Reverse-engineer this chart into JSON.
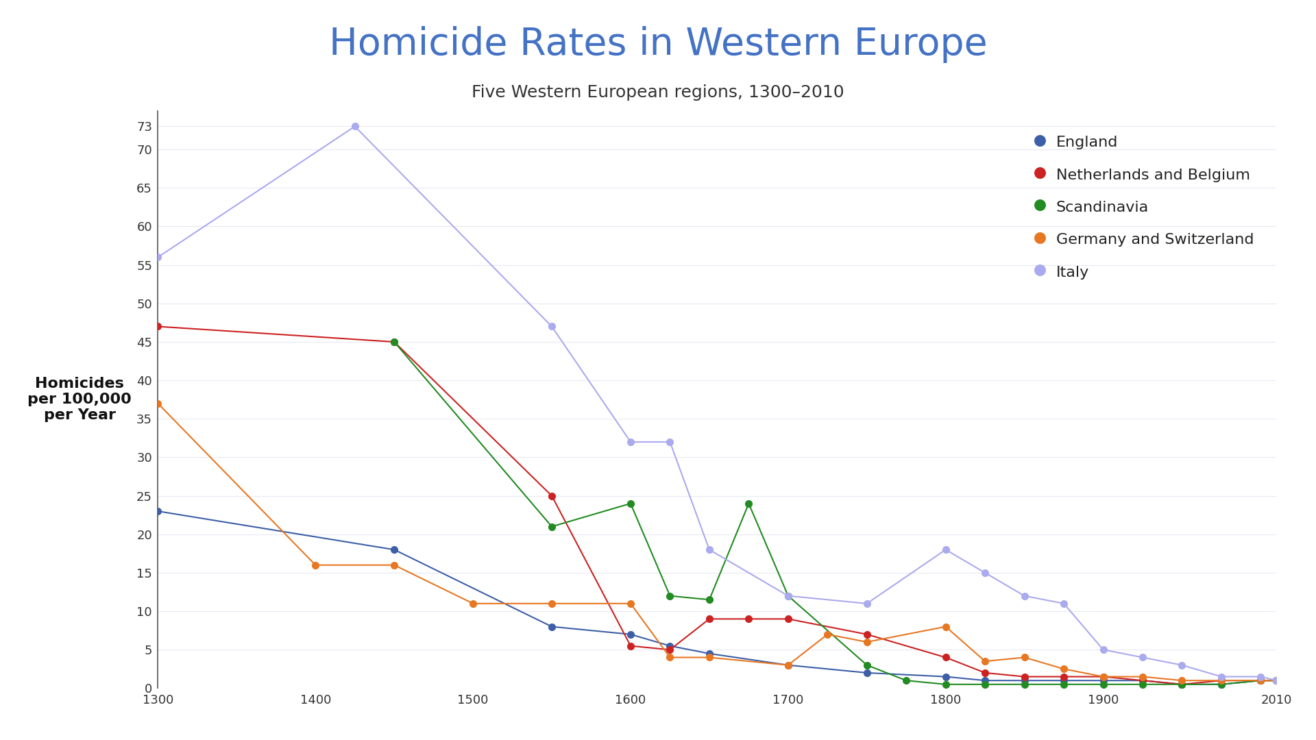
{
  "title": "Homicide Rates in Western Europe",
  "subtitle": "Five Western European regions, 1300–2010",
  "ylabel": "Homicides\nper 100,000\nper Year",
  "series": [
    {
      "label": "England",
      "color": "#3D5FA8",
      "x": [
        1300,
        1450,
        1550,
        1600,
        1625,
        1650,
        1700,
        1750,
        1800,
        1825,
        1850,
        1875,
        1900,
        1925,
        1950,
        1975,
        2000,
        2010
      ],
      "y": [
        23,
        18,
        8,
        7,
        5.5,
        4.5,
        3,
        2,
        1.5,
        1,
        1,
        1,
        1,
        1,
        0.5,
        0.5,
        1,
        1
      ]
    },
    {
      "label": "Netherlands and Belgium",
      "color": "#CC2222",
      "x": [
        1300,
        1450,
        1550,
        1600,
        1625,
        1650,
        1675,
        1700,
        1750,
        1800,
        1825,
        1850,
        1875,
        1900,
        1925,
        1950,
        1975,
        2000,
        2010
      ],
      "y": [
        47,
        45,
        25,
        5.5,
        5,
        9,
        9,
        9,
        7,
        4,
        2,
        1.5,
        1.5,
        1.5,
        1,
        0.5,
        1,
        1,
        1
      ]
    },
    {
      "label": "Scandinavia",
      "color": "#228B22",
      "x": [
        1450,
        1550,
        1600,
        1625,
        1650,
        1675,
        1700,
        1750,
        1775,
        1800,
        1825,
        1850,
        1875,
        1900,
        1925,
        1950,
        1975,
        2000,
        2010
      ],
      "y": [
        45,
        21,
        24,
        12,
        11.5,
        24,
        12,
        3,
        1,
        0.5,
        0.5,
        0.5,
        0.5,
        0.5,
        0.5,
        0.5,
        0.5,
        1,
        1
      ]
    },
    {
      "label": "Germany and Switzerland",
      "color": "#E87722",
      "x": [
        1300,
        1400,
        1450,
        1500,
        1550,
        1600,
        1625,
        1650,
        1700,
        1725,
        1750,
        1800,
        1825,
        1850,
        1875,
        1900,
        1925,
        1950,
        1975,
        2000,
        2010
      ],
      "y": [
        37,
        16,
        16,
        11,
        11,
        11,
        4,
        4,
        3,
        7,
        6,
        8,
        3.5,
        4,
        2.5,
        1.5,
        1.5,
        1,
        1,
        1,
        1
      ]
    },
    {
      "label": "Italy",
      "color": "#AAAAEE",
      "x": [
        1300,
        1425,
        1550,
        1600,
        1625,
        1650,
        1700,
        1750,
        1800,
        1825,
        1850,
        1875,
        1900,
        1925,
        1950,
        1975,
        2000,
        2010
      ],
      "y": [
        56,
        73,
        47,
        32,
        32,
        18,
        12,
        11,
        18,
        15,
        12,
        11,
        5,
        4,
        3,
        1.5,
        1.5,
        1
      ]
    }
  ],
  "xlim": [
    1300,
    2010
  ],
  "ylim": [
    0,
    75
  ],
  "yticks": [
    0,
    5,
    10,
    15,
    20,
    25,
    30,
    35,
    40,
    45,
    50,
    55,
    60,
    65,
    70,
    73
  ],
  "xticks": [
    1300,
    1400,
    1500,
    1600,
    1700,
    1800,
    1900,
    2010
  ],
  "title_color": "#4472C4",
  "subtitle_color": "#333333",
  "background_color": "#FFFFFF",
  "grid_color": "#E8E8F5"
}
